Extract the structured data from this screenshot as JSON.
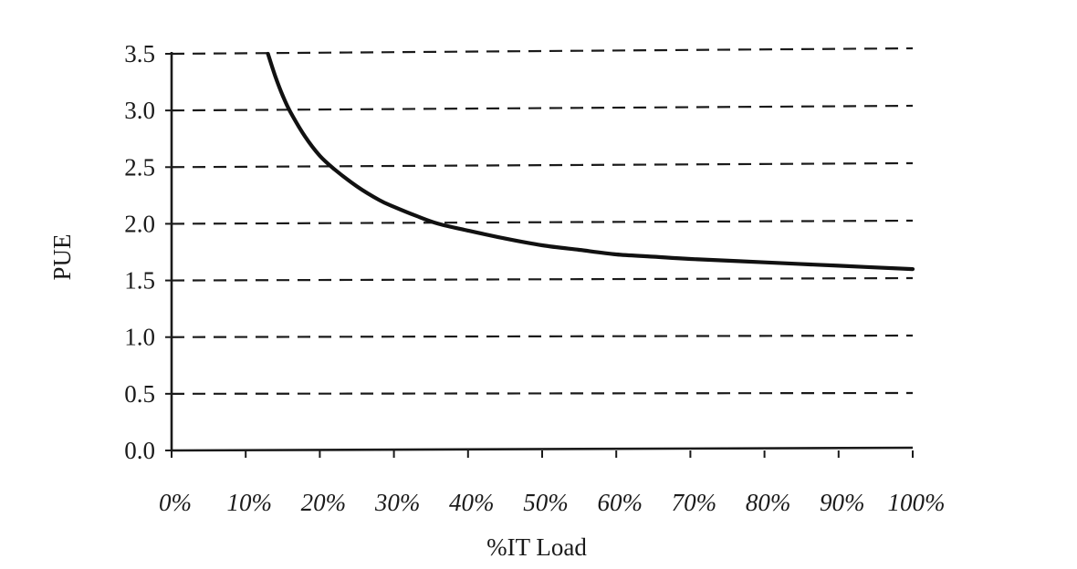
{
  "chart_data": {
    "type": "line",
    "xlabel": "%IT Load",
    "ylabel": "PUE",
    "x_tick_labels": [
      "0%",
      "10%",
      "20%",
      "30%",
      "40%",
      "50%",
      "60%",
      "70%",
      "80%",
      "90%",
      "100%"
    ],
    "y_tick_labels": [
      "0.0",
      "0.5",
      "1.0",
      "1.5",
      "2.0",
      "2.5",
      "3.0",
      "3.5"
    ],
    "xlim": [
      0,
      100
    ],
    "ylim": [
      0,
      3.5
    ],
    "grid": "horizontal-dashed",
    "series": [
      {
        "x": [
          13,
          14,
          15,
          16,
          18,
          20,
          22,
          25,
          28,
          30,
          33,
          36,
          40,
          45,
          50,
          55,
          60,
          65,
          70,
          80,
          90,
          100
        ],
        "y": [
          3.5,
          3.3,
          3.13,
          2.99,
          2.77,
          2.6,
          2.48,
          2.33,
          2.21,
          2.15,
          2.07,
          2.0,
          1.94,
          1.87,
          1.81,
          1.77,
          1.73,
          1.71,
          1.69,
          1.66,
          1.63,
          1.6
        ]
      }
    ]
  }
}
